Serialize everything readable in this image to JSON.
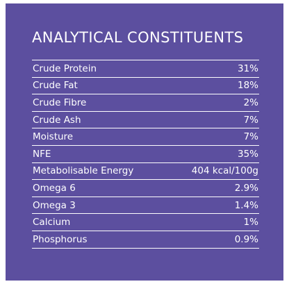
{
  "title": "ANALYTICAL CONSTITUENTS",
  "rows": [
    {
      "label": "Crude Protein",
      "value": "31%"
    },
    {
      "label": "Crude Fat",
      "value": "18%"
    },
    {
      "label": "Crude Fibre",
      "value": "2%"
    },
    {
      "label": "Crude Ash",
      "value": "7%"
    },
    {
      "label": "Moisture",
      "value": "7%"
    },
    {
      "label": "NFE",
      "value": "35%"
    },
    {
      "label": "Metabolisable Energy",
      "value": "404 kcal/100g"
    },
    {
      "label": "Omega 6",
      "value": "2.9%"
    },
    {
      "label": "Omega 3",
      "value": "1.4%"
    },
    {
      "label": "Calcium",
      "value": "1%"
    },
    {
      "label": "Phosphorus",
      "value": "0.9%"
    }
  ],
  "colors": {
    "panel_background": "#5c4f9f",
    "text": "#ffffff"
  }
}
